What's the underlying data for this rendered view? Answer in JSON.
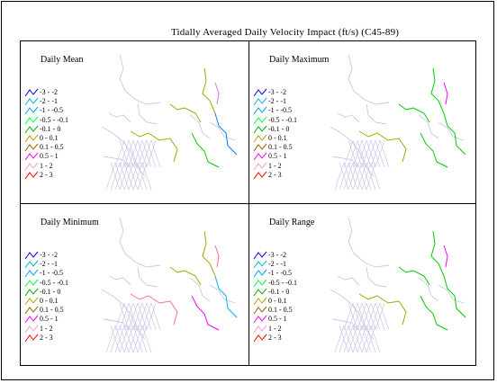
{
  "title": "Tidally Averaged Daily Velocity Impact (ft/s) (C45-89)",
  "panels": [
    {
      "title": "Daily Mean",
      "channel_colors": [
        "#a6a600",
        "#a6a600",
        "#a6a600",
        "#0080ff",
        "#00cc00",
        "#d07aff"
      ]
    },
    {
      "title": "Daily Maximum",
      "channel_colors": [
        "#a6a600",
        "#00cc00",
        "#00cc00",
        "#00cc00",
        "#00cc00",
        "#ff00ff"
      ]
    },
    {
      "title": "Daily Minimum",
      "channel_colors": [
        "#ff6aa0",
        "#a6a600",
        "#a6a600",
        "#00b0ff",
        "#ff00ff",
        "#ff6aa0"
      ]
    },
    {
      "title": "Daily Range",
      "channel_colors": [
        "#a6a600",
        "#00cc00",
        "#00cc00",
        "#00cc00",
        "#00cc00",
        "#ff00ff"
      ]
    }
  ],
  "legend": [
    {
      "label": "-3 - -2",
      "color": "#0000ff"
    },
    {
      "label": "-2 - -1",
      "color": "#00b8c8"
    },
    {
      "label": "-1 - -0.5",
      "color": "#00a0ff"
    },
    {
      "label": "-0.5 - -0.1",
      "color": "#00ff40"
    },
    {
      "label": "-0.1 - 0",
      "color": "#00b000"
    },
    {
      "label": "0 - 0.1",
      "color": "#a6a600"
    },
    {
      "label": "0.1 - 0.5",
      "color": "#a06000"
    },
    {
      "label": "0.5 - 1",
      "color": "#ff00ff"
    },
    {
      "label": "1 - 2",
      "color": "#ff99cc"
    },
    {
      "label": "2 - 3",
      "color": "#ff0000"
    }
  ],
  "colors": {
    "mesh": "#c8c8e8",
    "border": "#000000"
  }
}
